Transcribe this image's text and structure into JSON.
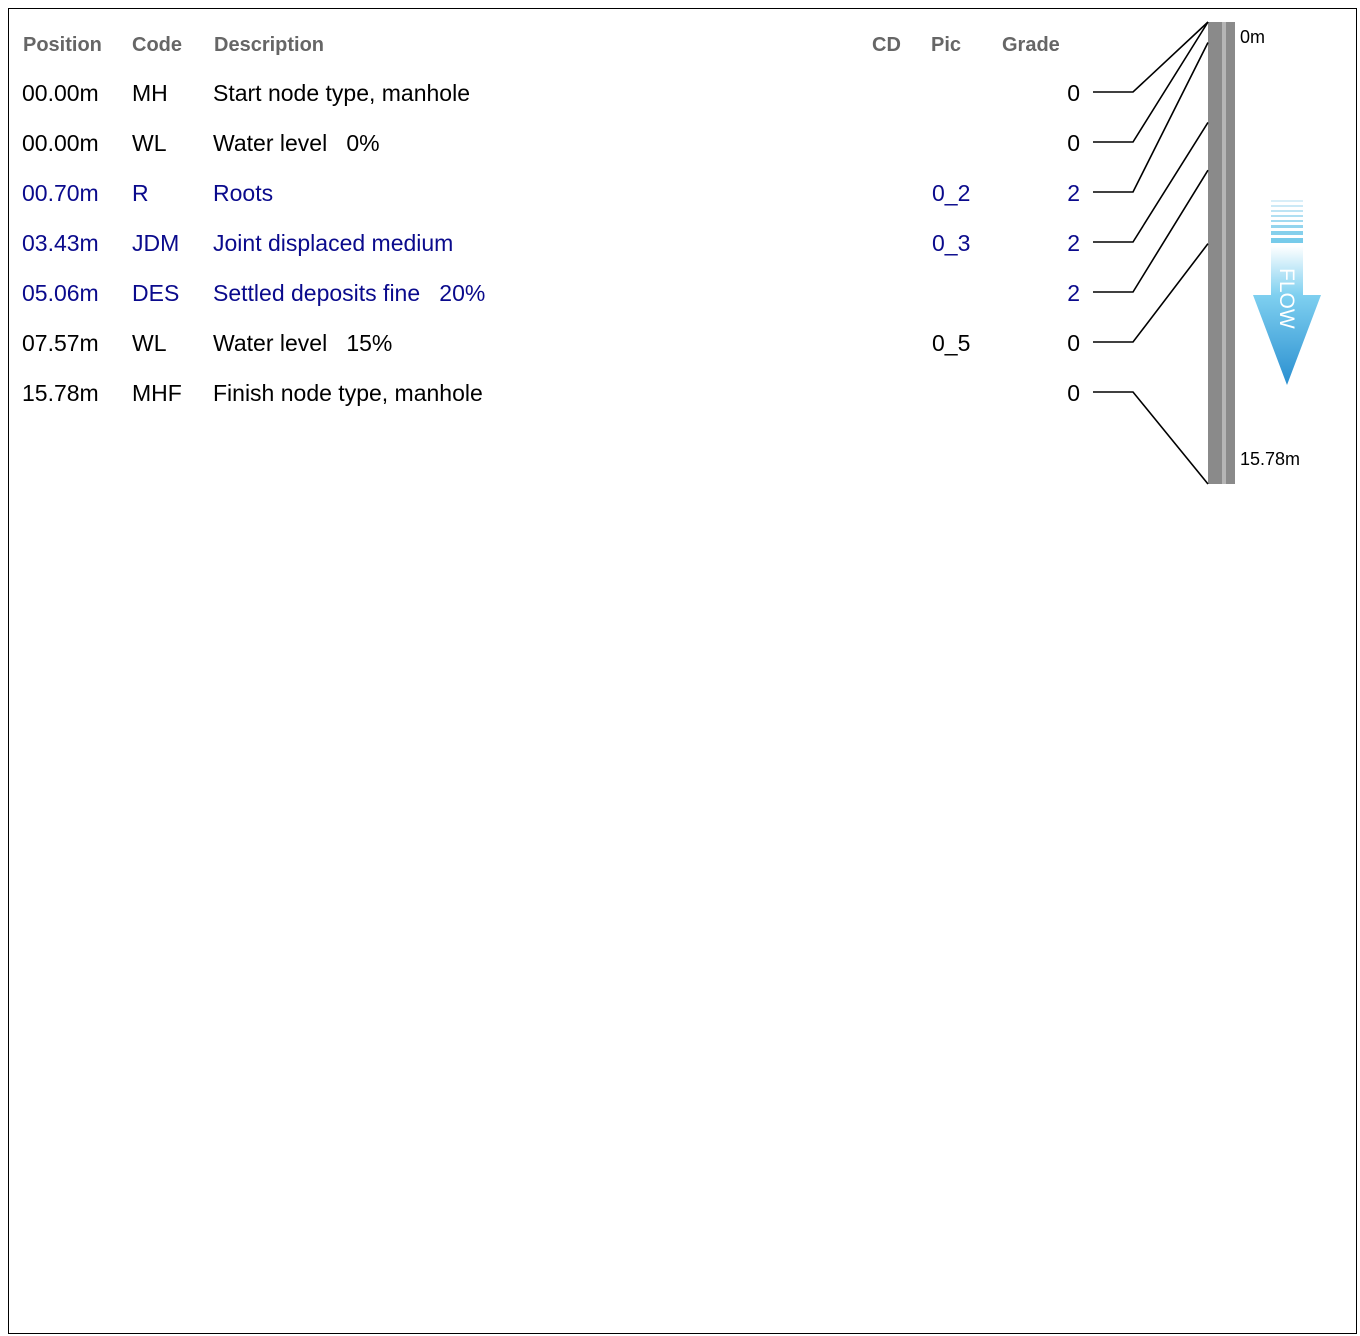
{
  "headers": {
    "position": "Position",
    "code": "Code",
    "description": "Description",
    "cd": "CD",
    "pic": "Pic",
    "grade": "Grade"
  },
  "rows": [
    {
      "position": "00.00m",
      "code": "MH",
      "description": "Start node type, manhole",
      "cd": "",
      "pic": "",
      "grade": "0",
      "color": "#000000"
    },
    {
      "position": "00.00m",
      "code": "WL",
      "description": "Water level   0%",
      "cd": "",
      "pic": "",
      "grade": "0",
      "color": "#000000"
    },
    {
      "position": "00.70m",
      "code": "R",
      "description": "Roots",
      "cd": "",
      "pic": "0_2",
      "grade": "2",
      "color": "#0a0a8c"
    },
    {
      "position": "03.43m",
      "code": "JDM",
      "description": "Joint displaced medium",
      "cd": "",
      "pic": "0_3",
      "grade": "2",
      "color": "#0a0a8c"
    },
    {
      "position": "05.06m",
      "code": "DES",
      "description": "Settled deposits fine   20%",
      "cd": "",
      "pic": "",
      "grade": "2",
      "color": "#0a0a8c"
    },
    {
      "position": "07.57m",
      "code": "WL",
      "description": "Water level   15%",
      "cd": "",
      "pic": "0_5",
      "grade": "0",
      "color": "#000000"
    },
    {
      "position": "15.78m",
      "code": "MHF",
      "description": "Finish node type, manhole",
      "cd": "",
      "pic": "",
      "grade": "0",
      "color": "#000000"
    }
  ],
  "pipe": {
    "start_label": "0m",
    "end_label": "15.78m",
    "length_m": 15.78,
    "flow_label": "FLOW"
  }
}
